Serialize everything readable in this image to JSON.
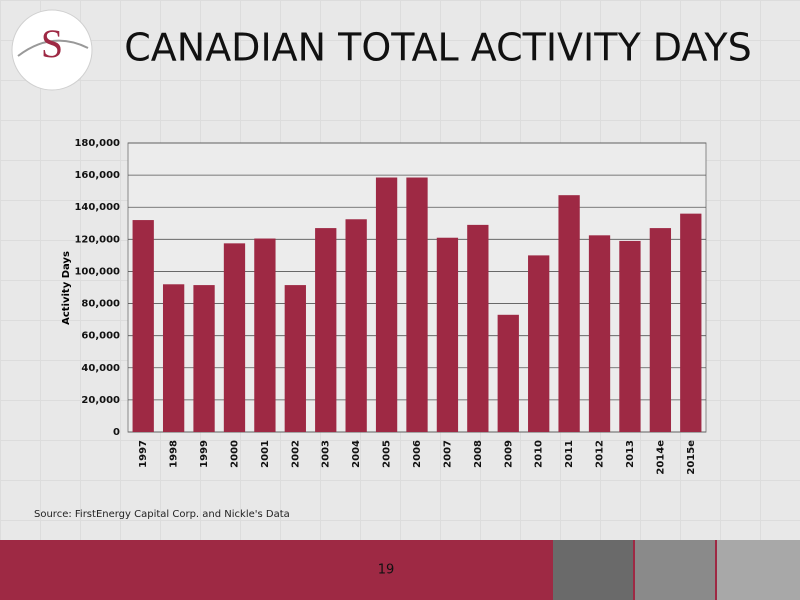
{
  "logo": "S",
  "page_number": "19",
  "chart_data": {
    "type": "bar",
    "title": "CANADIAN TOTAL ACTIVITY DAYS",
    "source": "Source: FirstEnergy Capital Corp. and Nickle's Data",
    "y_label": "Activity Days",
    "categories": [
      "1997",
      "1998",
      "1999",
      "2000",
      "2001",
      "2002",
      "2003",
      "2004",
      "2005",
      "2006",
      "2007",
      "2008",
      "2009",
      "2010",
      "2011",
      "2012",
      "2013",
      "2014e",
      "2015e"
    ],
    "values": [
      132000,
      92000,
      91500,
      117500,
      120500,
      91500,
      127000,
      132500,
      158500,
      158500,
      121000,
      129000,
      73000,
      110000,
      147500,
      122500,
      119000,
      127000,
      136000
    ],
    "color": "#9e2944",
    "ylim": [
      0,
      180000
    ],
    "yticks": [
      0,
      {
        "value": 20000,
        "label": "20,000"
      },
      {
        "value": 40000,
        "label": "40,000"
      },
      {
        "value": 60000,
        "label": "60,000"
      },
      {
        "value": 80000,
        "label": "80,000"
      },
      {
        "value": 100000,
        "label": "100,000"
      },
      {
        "value": 120000,
        "label": "120,000"
      },
      {
        "value": 140000,
        "label": "140,000"
      },
      {
        "value": 160000,
        "label": "160,000"
      },
      {
        "value": 180000,
        "label": "180,000"
      }
    ],
    "grid": true
  }
}
